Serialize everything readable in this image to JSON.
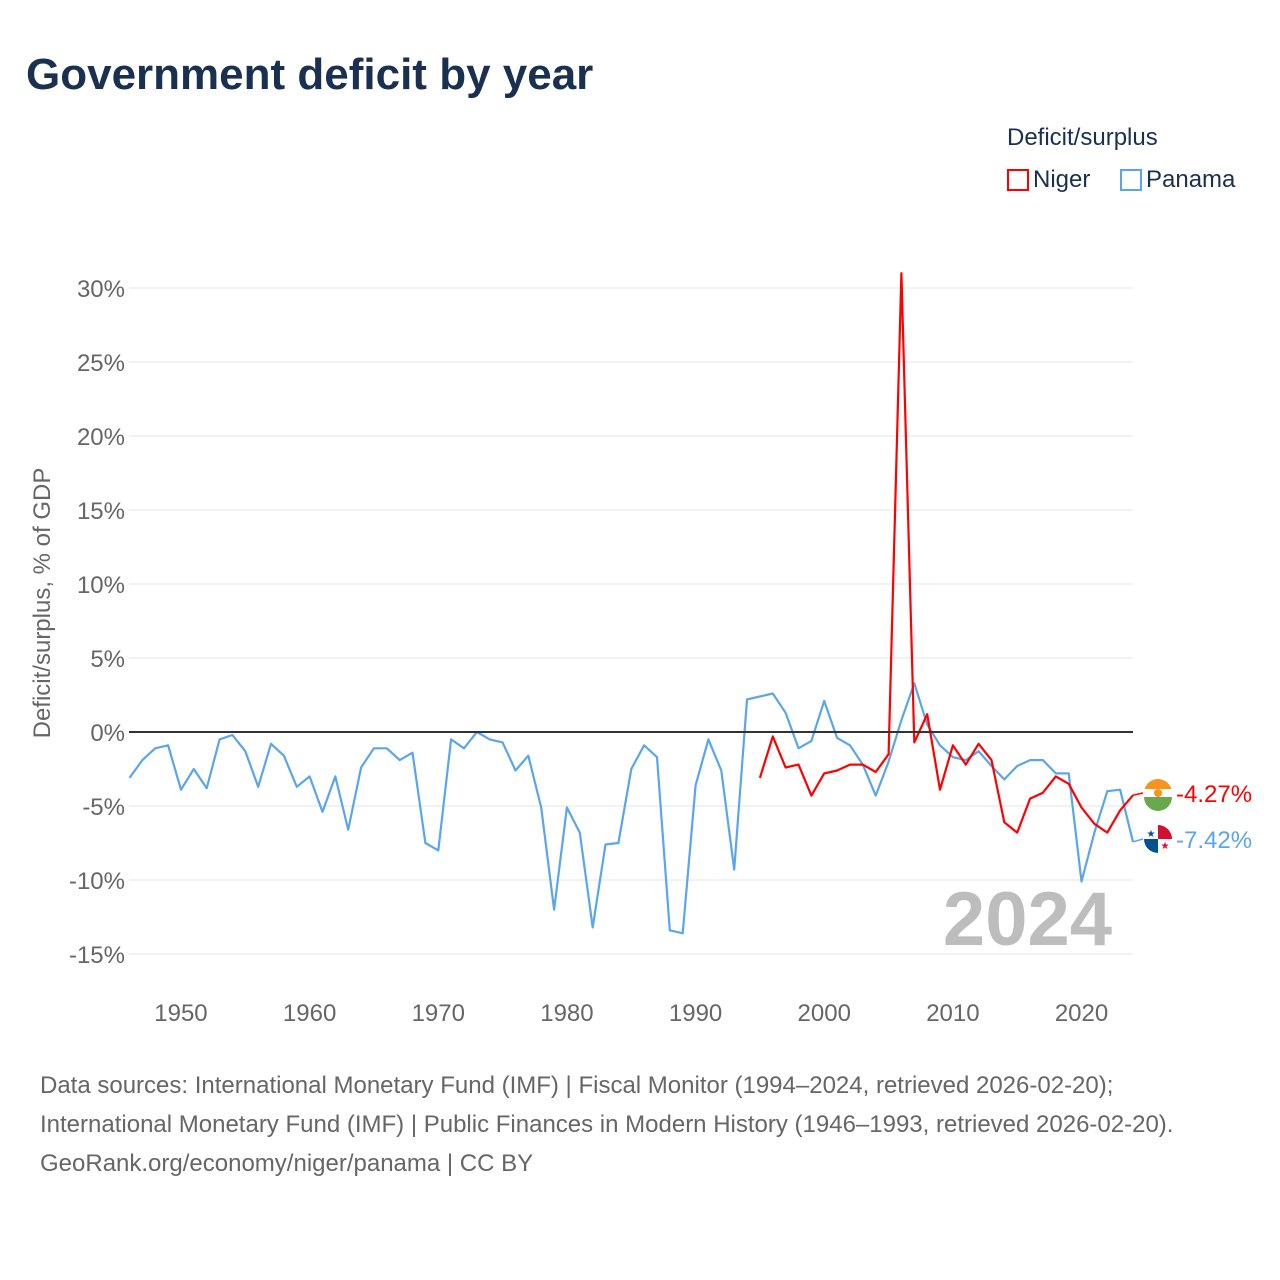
{
  "title": "Government deficit by year",
  "legend": {
    "title": "Deficit/surplus",
    "items": [
      {
        "name": "Niger",
        "color": "#ff0000"
      },
      {
        "name": "Panama",
        "color": "#5aa5ec"
      }
    ]
  },
  "footer": {
    "sources": "Data sources: International Monetary Fund (IMF) | Fiscal Monitor (1994–2024, retrieved 2026-02-20); International Monetary Fund (IMF) | Public Finances in Modern History (1946–1993, retrieved 2026-02-20).",
    "credit": "GeoRank.org/economy/niger/panama | CC BY"
  },
  "chart_data": {
    "type": "line",
    "title": "Government deficit by year",
    "xlabel": "",
    "ylabel": "Deficit/surplus, % of GDP",
    "xlim": [
      1946,
      2024
    ],
    "ylim": [
      -15,
      30
    ],
    "yticks": [
      -15,
      -10,
      -5,
      0,
      5,
      10,
      15,
      20,
      25,
      30
    ],
    "ytick_labels": [
      "-15%",
      "-10%",
      "-5%",
      "0%",
      "5%",
      "10%",
      "15%",
      "20%",
      "25%",
      "30%"
    ],
    "xticks": [
      1950,
      1960,
      1970,
      1980,
      1990,
      2000,
      2010,
      2020
    ],
    "xtick_labels": [
      "1950",
      "1960",
      "1970",
      "1980",
      "1990",
      "2000",
      "2010",
      "2020"
    ],
    "grid": true,
    "legend_position": "top-right",
    "year_watermark": "2024",
    "series": [
      {
        "name": "Niger",
        "color": "#ff0000",
        "end_label": "-4.27%",
        "start_year": 1995,
        "values": [
          -3.1,
          -0.3,
          -2.4,
          -2.2,
          -4.3,
          -2.8,
          -2.6,
          -2.2,
          -2.2,
          -2.7,
          -1.5,
          31.0,
          -0.7,
          1.2,
          -3.9,
          -0.9,
          -2.2,
          -0.8,
          -1.9,
          -6.1,
          -6.8,
          -4.5,
          -4.1,
          -3.0,
          -3.5,
          -5.1,
          -6.2,
          -6.8,
          -5.3,
          -4.27
        ]
      },
      {
        "name": "Panama",
        "color": "#5aa5ec",
        "end_label": "-7.42%",
        "start_year": 1946,
        "values": [
          -3.1,
          -1.9,
          -1.1,
          -0.9,
          -3.9,
          -2.5,
          -3.8,
          -0.5,
          -0.2,
          -1.3,
          -3.7,
          -0.8,
          -1.6,
          -3.7,
          -3.0,
          -5.4,
          -3.0,
          -6.6,
          -2.4,
          -1.1,
          -1.1,
          -1.9,
          -1.4,
          -7.5,
          -8.0,
          -0.5,
          -1.1,
          0.0,
          -0.5,
          -0.7,
          -2.6,
          -1.6,
          -5.1,
          -12.0,
          -5.1,
          -6.8,
          -13.2,
          -7.6,
          -7.5,
          -2.5,
          -0.9,
          -1.7,
          -13.4,
          -13.6,
          -3.6,
          -0.5,
          -2.6,
          -9.3,
          2.2,
          2.4,
          2.6,
          1.3,
          -1.1,
          -0.6,
          2.1,
          -0.4,
          -0.9,
          -2.2,
          -4.3,
          -2.0,
          0.8,
          3.3,
          0.5,
          -0.9,
          -1.7,
          -1.9,
          -1.3,
          -2.3,
          -3.2,
          -2.3,
          -1.9,
          -1.9,
          -2.8,
          -2.8,
          -10.1,
          -6.8,
          -4.0,
          -3.9,
          -7.42
        ]
      }
    ]
  }
}
